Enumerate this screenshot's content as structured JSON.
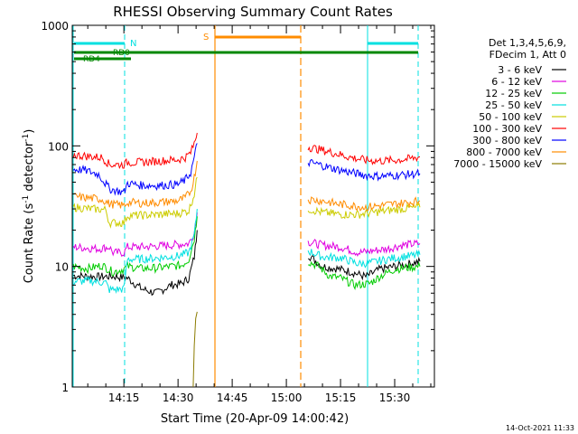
{
  "chart_data": {
    "type": "line",
    "title": "RHESSI Observing Summary Count Rates",
    "xlabel": "Start Time (20-Apr-09 14:00:42)",
    "ylabel_main": "Count Rate (s",
    "ylabel_sup1": "-1",
    "ylabel_mid": " detector",
    "ylabel_sup2": "-1",
    "ylabel_end": ")",
    "y_scale": "log",
    "xlim_min": [
      0.7,
      101
    ],
    "ylim": [
      1,
      1000
    ],
    "x_ticks": [
      {
        "value": 15,
        "label": "14:15"
      },
      {
        "value": 30,
        "label": "14:30"
      },
      {
        "value": 45,
        "label": "14:45"
      },
      {
        "value": 60,
        "label": "15:00"
      },
      {
        "value": 75,
        "label": "15:15"
      },
      {
        "value": 90,
        "label": "15:30"
      }
    ],
    "y_ticks": [
      {
        "value": 1,
        "label": "1"
      },
      {
        "value": 10,
        "label": "10"
      },
      {
        "value": 100,
        "label": "100"
      },
      {
        "value": 1000,
        "label": "1000"
      }
    ],
    "legend_header": [
      "Det 1,3,4,5,6,9,",
      "FDecim 1, Att 0"
    ],
    "legend_position": "right",
    "series": [
      {
        "name": "3 - 6 keV",
        "color": "#000000",
        "segments": [
          [
            [
              1,
              8.4
            ],
            [
              8,
              8.2
            ],
            [
              12,
              8.3
            ],
            [
              16,
              8.0
            ],
            [
              20,
              6.5
            ],
            [
              24,
              6.0
            ],
            [
              28,
              7.0
            ],
            [
              31,
              7.2
            ],
            [
              33,
              8.0
            ],
            [
              34.5,
              12
            ],
            [
              35.3,
              20
            ]
          ],
          [
            [
              66,
              12.5
            ],
            [
              70,
              10
            ],
            [
              74,
              9.6
            ],
            [
              78,
              9.0
            ],
            [
              82,
              8.2
            ],
            [
              86,
              9.5
            ],
            [
              90,
              10
            ],
            [
              94,
              10.5
            ],
            [
              97,
              11
            ]
          ]
        ]
      },
      {
        "name": "6 - 12 keV",
        "color": "#e000e0",
        "segments": [
          [
            [
              1,
              14.5
            ],
            [
              8,
              14
            ],
            [
              11,
              14.5
            ],
            [
              12,
              13
            ],
            [
              15,
              13
            ],
            [
              16,
              14.5
            ],
            [
              20,
              14.5
            ],
            [
              25,
              14.8
            ],
            [
              30,
              15.2
            ],
            [
              33,
              15.5
            ],
            [
              34.5,
              19
            ],
            [
              35.3,
              28
            ]
          ],
          [
            [
              66,
              16
            ],
            [
              70,
              15
            ],
            [
              75,
              14.5
            ],
            [
              80,
              13
            ],
            [
              84,
              13.5
            ],
            [
              88,
              14
            ],
            [
              92,
              15
            ],
            [
              97,
              15.5
            ]
          ]
        ]
      },
      {
        "name": "12 - 25 keV",
        "color": "#00cc00",
        "segments": [
          [
            [
              1,
              10
            ],
            [
              5,
              9.6
            ],
            [
              9,
              10.2
            ],
            [
              12,
              9.0
            ],
            [
              15,
              9.5
            ],
            [
              16,
              10
            ],
            [
              20,
              9.6
            ],
            [
              24,
              9.7
            ],
            [
              28,
              10
            ],
            [
              31,
              10.2
            ],
            [
              33,
              11.5
            ],
            [
              34.5,
              17
            ],
            [
              35.3,
              26
            ]
          ],
          [
            [
              66,
              11
            ],
            [
              69,
              10
            ],
            [
              72,
              8.3
            ],
            [
              75,
              8.0
            ],
            [
              79,
              7.0
            ],
            [
              83,
              7.2
            ],
            [
              86,
              8.3
            ],
            [
              90,
              9.5
            ],
            [
              94,
              9.8
            ],
            [
              97,
              10
            ]
          ]
        ]
      },
      {
        "name": "25 - 50 keV",
        "color": "#00e0e0",
        "segments": [
          [
            [
              1,
              7.5
            ],
            [
              6,
              7.6
            ],
            [
              10,
              7.3
            ],
            [
              11,
              6.4
            ],
            [
              15,
              6.5
            ],
            [
              16,
              11.5
            ],
            [
              20,
              11.5
            ],
            [
              25,
              11.8
            ],
            [
              30,
              12.2
            ],
            [
              33,
              13
            ],
            [
              34.5,
              18
            ],
            [
              35.3,
              30
            ]
          ],
          [
            [
              66,
              13.5
            ],
            [
              70,
              12
            ],
            [
              75,
              11.8
            ],
            [
              80,
              10.5
            ],
            [
              84,
              10.8
            ],
            [
              88,
              11.5
            ],
            [
              92,
              12
            ],
            [
              97,
              12.5
            ]
          ]
        ]
      },
      {
        "name": "50 - 100 keV",
        "color": "#cccc00",
        "segments": [
          [
            [
              1,
              31
            ],
            [
              6,
              30
            ],
            [
              10,
              29.5
            ],
            [
              11,
              23
            ],
            [
              15,
              23
            ],
            [
              16,
              26.5
            ],
            [
              20,
              26.5
            ],
            [
              25,
              27
            ],
            [
              30,
              27.5
            ],
            [
              33,
              29
            ],
            [
              34.5,
              40
            ],
            [
              35.3,
              55
            ]
          ],
          [
            [
              66,
              30
            ],
            [
              70,
              28
            ],
            [
              75,
              27
            ],
            [
              80,
              27
            ],
            [
              84,
              28
            ],
            [
              88,
              29
            ],
            [
              92,
              30
            ],
            [
              97,
              31
            ]
          ]
        ]
      },
      {
        "name": "100 - 300 keV",
        "color": "#ff0000",
        "segments": [
          [
            [
              1,
              84
            ],
            [
              5,
              82
            ],
            [
              9,
              80
            ],
            [
              11,
              70
            ],
            [
              15,
              70
            ],
            [
              16,
              73
            ],
            [
              20,
              73
            ],
            [
              25,
              75
            ],
            [
              30,
              77
            ],
            [
              32,
              80
            ],
            [
              33.5,
              88
            ],
            [
              34.5,
              105
            ],
            [
              35.3,
              128
            ]
          ],
          [
            [
              66,
              98
            ],
            [
              70,
              92
            ],
            [
              74,
              86
            ],
            [
              78,
              80
            ],
            [
              82,
              76
            ],
            [
              86,
              75
            ],
            [
              90,
              76
            ],
            [
              94,
              78
            ],
            [
              97,
              81
            ]
          ]
        ]
      },
      {
        "name": "300 - 800 keV",
        "color": "#0000ff",
        "segments": [
          [
            [
              1,
              64
            ],
            [
              4,
              63
            ],
            [
              8,
              58
            ],
            [
              11,
              44
            ],
            [
              15,
              41
            ],
            [
              16,
              49
            ],
            [
              20,
              47
            ],
            [
              25,
              47
            ],
            [
              30,
              48
            ],
            [
              32,
              52
            ],
            [
              33.5,
              60
            ],
            [
              34.5,
              80
            ],
            [
              35.3,
              105
            ]
          ],
          [
            [
              66,
              73
            ],
            [
              69,
              70
            ],
            [
              72,
              66
            ],
            [
              75,
              63
            ],
            [
              78,
              60
            ],
            [
              82,
              57
            ],
            [
              86,
              56
            ],
            [
              90,
              57
            ],
            [
              94,
              58
            ],
            [
              97,
              59
            ]
          ]
        ]
      },
      {
        "name": "800 - 7000 keV",
        "color": "#ff8c00",
        "segments": [
          [
            [
              1,
              38
            ],
            [
              5,
              37
            ],
            [
              9,
              36
            ],
            [
              11,
              33
            ],
            [
              15,
              32
            ],
            [
              16,
              34
            ],
            [
              20,
              33.5
            ],
            [
              25,
              34
            ],
            [
              30,
              35
            ],
            [
              32,
              37
            ],
            [
              33.5,
              42
            ],
            [
              34.5,
              55
            ],
            [
              35.3,
              75
            ]
          ],
          [
            [
              66,
              36
            ],
            [
              70,
              35
            ],
            [
              74,
              33
            ],
            [
              78,
              32
            ],
            [
              82,
              31
            ],
            [
              86,
              32
            ],
            [
              90,
              33
            ],
            [
              94,
              34
            ],
            [
              97,
              35
            ]
          ]
        ]
      },
      {
        "name": "7000 - 15000 keV",
        "color": "#8b7b00",
        "segments": [
          [
            [
              34.2,
              1
            ],
            [
              34.5,
              2.2
            ],
            [
              34.9,
              3.7
            ],
            [
              35.3,
              4.2
            ]
          ]
        ]
      }
    ]
  }
}
